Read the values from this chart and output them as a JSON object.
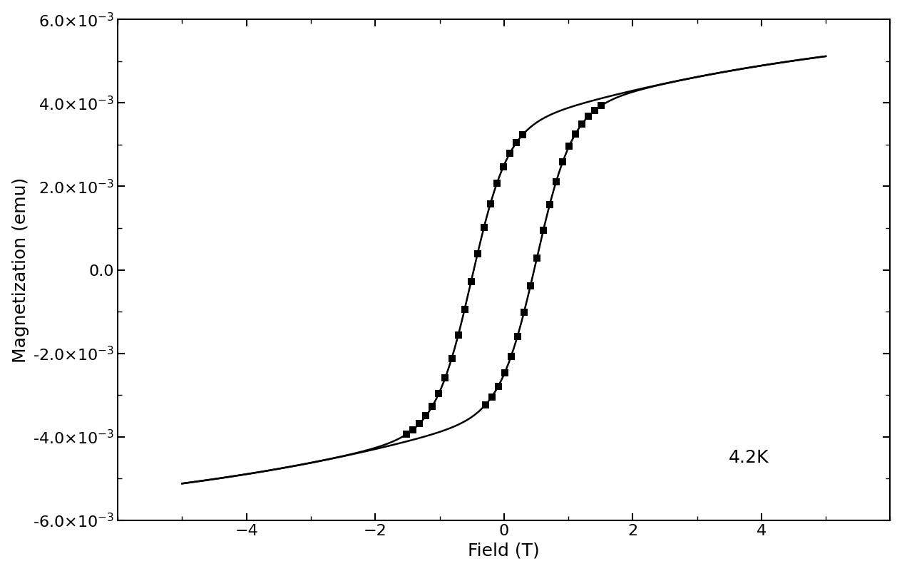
{
  "title": "",
  "xlabel": "Field (T)",
  "ylabel": "Magnetization (emu)",
  "annotation": "4.2K",
  "xlim": [
    -6,
    6
  ],
  "ylim": [
    -0.006,
    0.006
  ],
  "xticks": [
    -4,
    -2,
    0,
    2,
    4
  ],
  "ytick_values": [
    -0.006,
    -0.004,
    -0.002,
    0.0,
    0.002,
    0.004,
    0.006
  ],
  "background_color": "#ffffff",
  "line_color": "#000000",
  "marker_color": "#000000",
  "xlabel_fontsize": 18,
  "ylabel_fontsize": 18,
  "tick_fontsize": 16,
  "annotation_fontsize": 18,
  "Ms": 0.0065,
  "Hc": 0.5,
  "alpha": 0.55,
  "slope": 0.00012
}
